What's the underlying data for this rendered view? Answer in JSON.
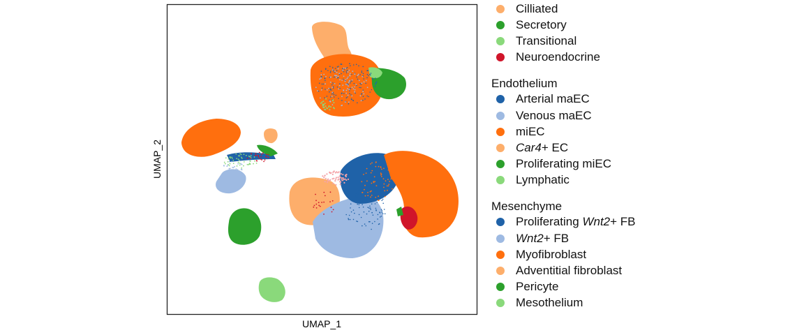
{
  "chart_data": {
    "type": "scatter",
    "xlabel": "UMAP_1",
    "ylabel": "UMAP_2",
    "grid": false,
    "legend_position": "right",
    "legend_groups": [
      {
        "title": "",
        "items": [
          {
            "label": "Cilliated",
            "color": "#FDAE6B"
          },
          {
            "label": "Secretory",
            "color": "#2CA02C"
          },
          {
            "label": "Transitional",
            "color": "#8AD97B"
          },
          {
            "label": "Neuroendocrine",
            "color": "#D0152A"
          }
        ]
      },
      {
        "title": "Endothelium",
        "items": [
          {
            "label": "Arterial maEC",
            "color": "#1F62A8"
          },
          {
            "label": "Venous maEC",
            "color": "#9EBAE2"
          },
          {
            "label": "miEC",
            "color": "#FF6F0E"
          },
          {
            "label": "Car4+ EC",
            "italic_prefix": "Car4",
            "suffix": "+ EC",
            "color": "#FDAE6B"
          },
          {
            "label": "Proliferating miEC",
            "color": "#2CA02C"
          },
          {
            "label": "Lymphatic",
            "color": "#8AD97B"
          }
        ]
      },
      {
        "title": "Mesenchyme",
        "items": [
          {
            "label": "Proliferating Wnt2+ FB",
            "prefix": "Proliferating ",
            "italic_prefix": "Wnt2",
            "suffix": "+ FB",
            "color": "#1F62A8"
          },
          {
            "label": "Wnt2+ FB",
            "italic_prefix": "Wnt2",
            "suffix": "+ FB",
            "color": "#9EBAE2"
          },
          {
            "label": "Myofibroblast",
            "color": "#FF6F0E"
          },
          {
            "label": "Adventitial fibroblast",
            "color": "#FDAE6B"
          },
          {
            "label": "Pericyte",
            "color": "#2CA02C"
          },
          {
            "label": "Mesothelium",
            "color": "#8AD97B"
          }
        ]
      }
    ]
  }
}
